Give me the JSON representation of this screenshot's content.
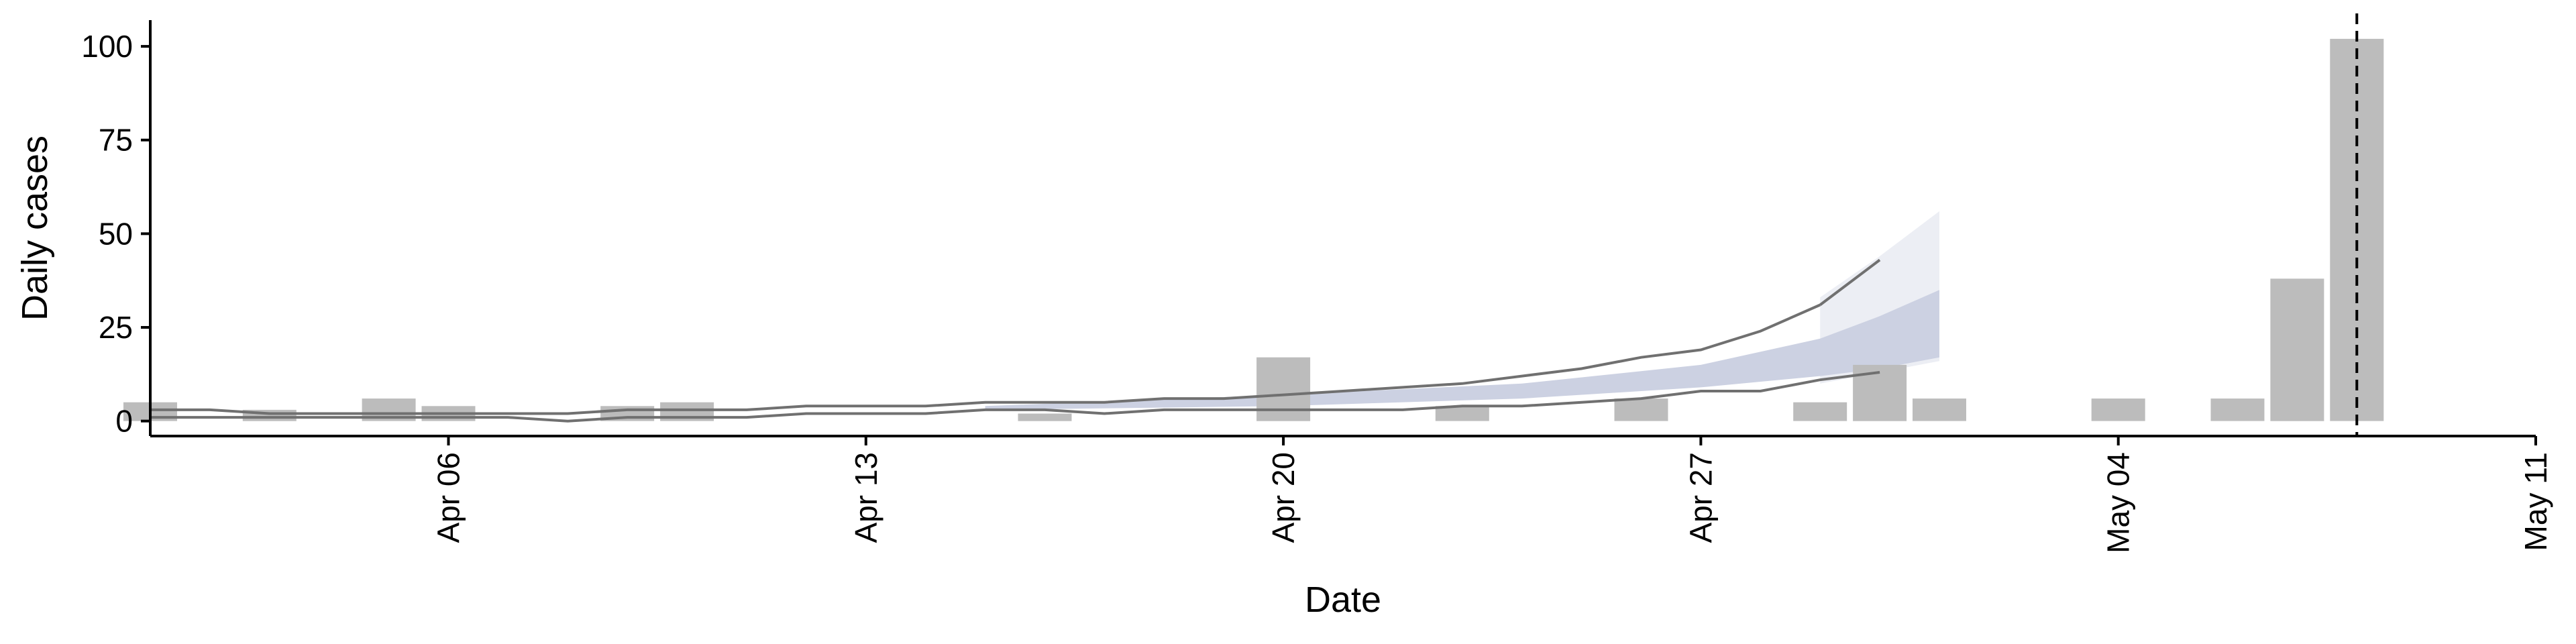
{
  "chart_data": {
    "type": "bar",
    "xlabel": "Date",
    "ylabel": "Daily cases",
    "ylim": [
      -4,
      107
    ],
    "xlim": [
      "2020-04-01",
      "2020-05-11"
    ],
    "yticks": [
      0,
      25,
      50,
      75,
      100
    ],
    "xticks": [
      {
        "date": "2020-04-06",
        "label": "Apr 06"
      },
      {
        "date": "2020-04-13",
        "label": "Apr 13"
      },
      {
        "date": "2020-04-20",
        "label": "Apr 20"
      },
      {
        "date": "2020-04-27",
        "label": "Apr 27"
      },
      {
        "date": "2020-05-04",
        "label": "May 04"
      },
      {
        "date": "2020-05-11",
        "label": "May 11"
      }
    ],
    "grid": false,
    "colors": {
      "bars": "#bcbcbc",
      "lines": "#707070",
      "band_outer": "#eceef4",
      "band_inner": "#ccd1e2"
    },
    "bars": [
      {
        "date": "2020-04-01",
        "value": 5
      },
      {
        "date": "2020-04-03",
        "value": 3
      },
      {
        "date": "2020-04-05",
        "value": 6
      },
      {
        "date": "2020-04-06",
        "value": 4
      },
      {
        "date": "2020-04-09",
        "value": 4
      },
      {
        "date": "2020-04-10",
        "value": 5
      },
      {
        "date": "2020-04-16",
        "value": 2
      },
      {
        "date": "2020-04-20",
        "value": 17
      },
      {
        "date": "2020-04-23",
        "value": 4
      },
      {
        "date": "2020-04-26",
        "value": 6
      },
      {
        "date": "2020-04-29",
        "value": 5
      },
      {
        "date": "2020-04-30",
        "value": 15
      },
      {
        "date": "2020-05-01",
        "value": 6
      },
      {
        "date": "2020-05-04",
        "value": 6
      },
      {
        "date": "2020-05-06",
        "value": 6
      },
      {
        "date": "2020-05-07",
        "value": 38
      },
      {
        "date": "2020-05-08",
        "value": 102
      }
    ],
    "series": [
      {
        "key": "upper",
        "dates": [
          "2020-04-01",
          "2020-04-02",
          "2020-04-03",
          "2020-04-04",
          "2020-04-05",
          "2020-04-06",
          "2020-04-07",
          "2020-04-08",
          "2020-04-09",
          "2020-04-10",
          "2020-04-11",
          "2020-04-12",
          "2020-04-13",
          "2020-04-14",
          "2020-04-15",
          "2020-04-16",
          "2020-04-17",
          "2020-04-18",
          "2020-04-19",
          "2020-04-20",
          "2020-04-21",
          "2020-04-22",
          "2020-04-23",
          "2020-04-24",
          "2020-04-25",
          "2020-04-26",
          "2020-04-27",
          "2020-04-28",
          "2020-04-29"
        ],
        "values": [
          3,
          3,
          2,
          2,
          2,
          2,
          2,
          2,
          3,
          3,
          3,
          4,
          4,
          4,
          5,
          5,
          5,
          6,
          6,
          7,
          8,
          9,
          10,
          12,
          14,
          17,
          19,
          24,
          31
        ]
      },
      {
        "key": "lower",
        "dates": [
          "2020-04-01",
          "2020-04-02",
          "2020-04-03",
          "2020-04-04",
          "2020-04-05",
          "2020-04-06",
          "2020-04-07",
          "2020-04-08",
          "2020-04-09",
          "2020-04-10",
          "2020-04-11",
          "2020-04-12",
          "2020-04-13",
          "2020-04-14",
          "2020-04-15",
          "2020-04-16",
          "2020-04-17",
          "2020-04-18",
          "2020-04-19",
          "2020-04-20",
          "2020-04-21",
          "2020-04-22",
          "2020-04-23",
          "2020-04-24",
          "2020-04-25",
          "2020-04-26",
          "2020-04-27",
          "2020-04-28",
          "2020-04-29",
          "2020-04-30"
        ],
        "values": [
          1,
          1,
          1,
          1,
          1,
          1,
          1,
          0,
          1,
          1,
          1,
          2,
          2,
          2,
          3,
          3,
          2,
          3,
          3,
          3,
          3,
          3,
          4,
          4,
          5,
          6,
          8,
          8,
          11,
          13
        ]
      }
    ],
    "forecast": {
      "start_date": "2020-04-29",
      "upper_line": [
        {
          "date": "2020-04-29",
          "value": 31
        },
        {
          "date": "2020-04-30",
          "value": 43
        }
      ],
      "band_outer": [
        {
          "date": "2020-04-29",
          "low": 10,
          "high": 33
        },
        {
          "date": "2020-04-30",
          "low": 13,
          "high": 44
        },
        {
          "date": "2020-05-01",
          "low": 16,
          "high": 56
        }
      ],
      "band_inner": [
        {
          "date": "2020-04-15",
          "low": 3,
          "high": 4
        },
        {
          "date": "2020-04-20",
          "low": 4,
          "high": 7
        },
        {
          "date": "2020-04-24",
          "low": 6,
          "high": 10
        },
        {
          "date": "2020-04-27",
          "low": 9,
          "high": 15
        },
        {
          "date": "2020-04-29",
          "low": 12,
          "high": 22
        },
        {
          "date": "2020-04-30",
          "low": 14,
          "high": 28
        },
        {
          "date": "2020-05-01",
          "low": 17,
          "high": 35
        }
      ]
    },
    "vline": {
      "date": "2020-05-08",
      "style": "dashed"
    }
  }
}
